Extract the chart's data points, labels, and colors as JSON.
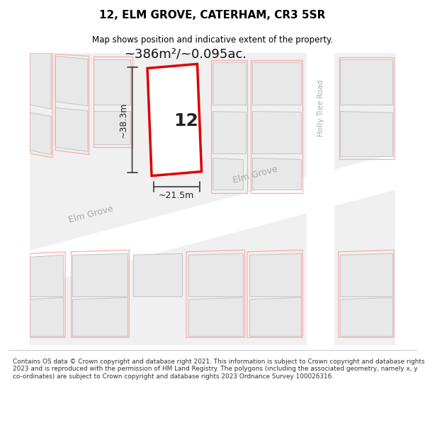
{
  "title": "12, ELM GROVE, CATERHAM, CR3 5SR",
  "subtitle": "Map shows position and indicative extent of the property.",
  "area_label": "~386m²/~0.095ac.",
  "property_number": "12",
  "dim_width": "~21.5m",
  "dim_height": "~38.3m",
  "background_color": "#ffffff",
  "map_bg": "#f0f0f0",
  "building_fill": "#e8e8e8",
  "building_outline": "#c8c8c8",
  "red_plot_color": "#dd0000",
  "dim_line_color": "#444444",
  "footer_text": "Contains OS data © Crown copyright and database right 2021. This information is subject to Crown copyright and database rights 2023 and is reproduced with the permission of HM Land Registry. The polygons (including the associated geometry, namely x, y co-ordinates) are subject to Crown copyright and database rights 2023 Ordnance Survey 100026316.",
  "holly_tree_road_label": "Holly Tree Road",
  "elm_grove_label": "Elm Grove",
  "elm_grove_label2": "Elm Grove"
}
